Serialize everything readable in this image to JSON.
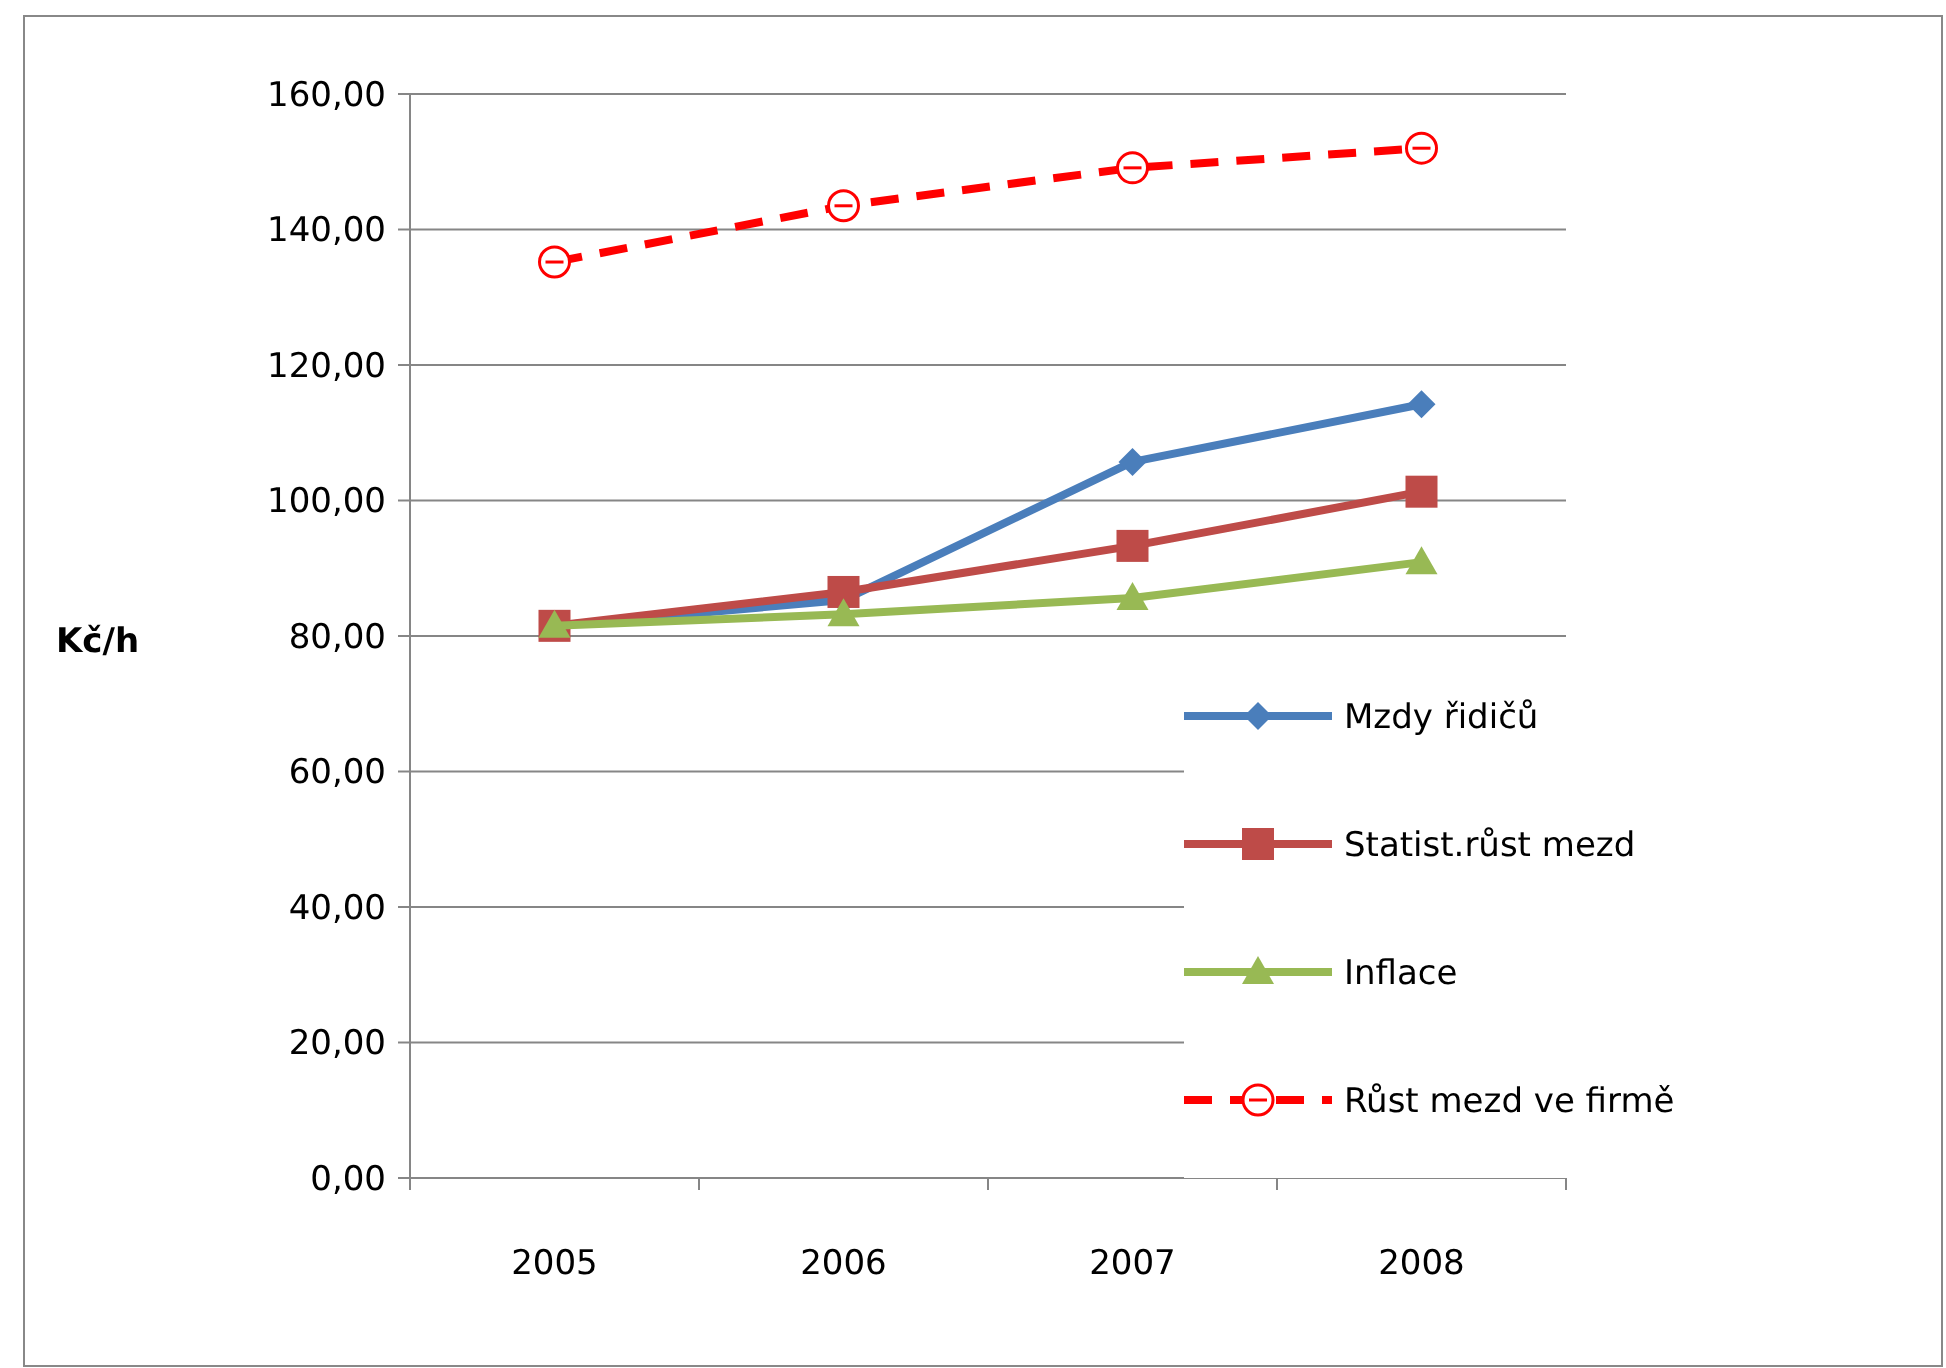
{
  "chart_data": {
    "type": "line",
    "ylabel": "Kč/h",
    "categories": [
      "2005",
      "2006",
      "2007",
      "2008"
    ],
    "series": [
      {
        "name": "Mzdy řidičů",
        "color": "#4a7ebb",
        "values": [
          81.5,
          85.3,
          105.7,
          114.2
        ],
        "marker": "diamond",
        "line_style": "solid"
      },
      {
        "name": "Statist.růst  mezd",
        "color": "#be4b48",
        "values": [
          81.5,
          86.5,
          93.3,
          101.3
        ],
        "marker": "square",
        "line_style": "solid"
      },
      {
        "name": "Inflace",
        "color": "#98b954",
        "values": [
          81.5,
          83.2,
          85.6,
          90.9
        ],
        "marker": "triangle",
        "line_style": "solid"
      },
      {
        "name": "Růst mezd ve firmě",
        "color": "#ff0000",
        "values": [
          135.2,
          143.5,
          149.1,
          152.0
        ],
        "marker": "circle",
        "line_style": "dashed"
      }
    ],
    "ylim": [
      0,
      160
    ],
    "yticks": [
      {
        "value": 0,
        "label": "0,00"
      },
      {
        "value": 20,
        "label": "20,00"
      },
      {
        "value": 40,
        "label": "40,00"
      },
      {
        "value": 60,
        "label": "60,00"
      },
      {
        "value": 80,
        "label": "80,00"
      },
      {
        "value": 100,
        "label": "100,00"
      },
      {
        "value": 120,
        "label": "120,00"
      },
      {
        "value": 140,
        "label": "140,00"
      },
      {
        "value": 160,
        "label": "160,00"
      }
    ],
    "grid": "y",
    "legend": "right"
  }
}
